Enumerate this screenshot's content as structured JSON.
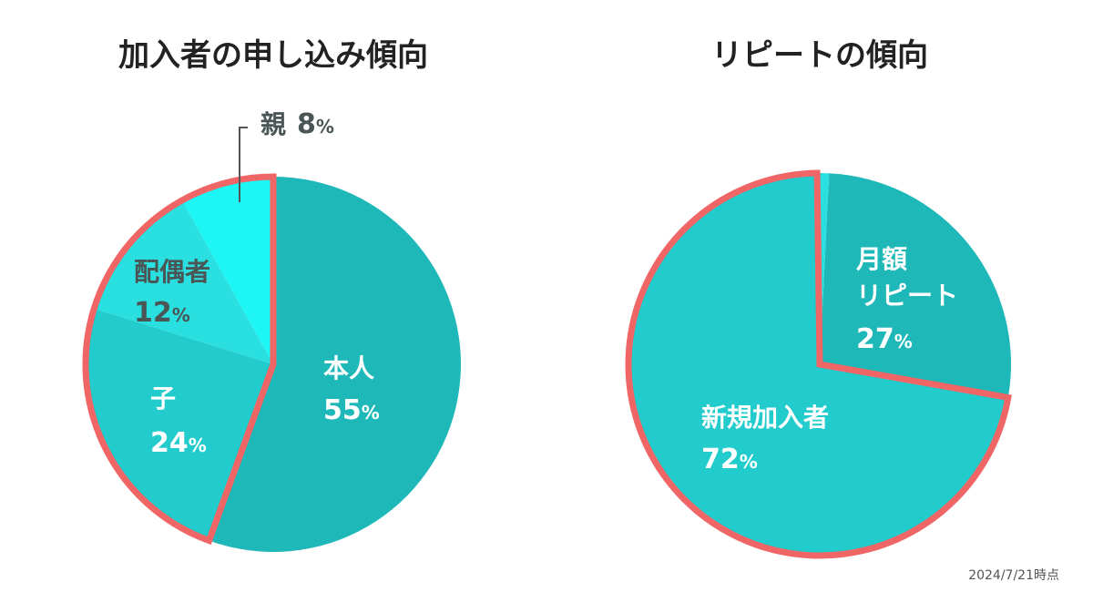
{
  "chart_data": [
    {
      "type": "pie",
      "title": "加入者の申し込み傾向",
      "slices": [
        {
          "label": "本人",
          "value": 55,
          "color": "#1fb8b8",
          "text_color": "#ffffff"
        },
        {
          "label": "子",
          "value": 24,
          "color": "#22cccc",
          "text_color": "#ffffff"
        },
        {
          "label": "配偶者",
          "value": 12,
          "color": "#2adfdf",
          "text_color": "#4a5555"
        },
        {
          "label": "親",
          "value": 8,
          "color": "#1ef5f5",
          "text_color": "#4a5555"
        }
      ],
      "highlight_color": "#f06565"
    },
    {
      "type": "pie",
      "title": "リピートの傾向",
      "slices": [
        {
          "label": "月額リピート",
          "value": 27,
          "color": "#1fb8b8",
          "text_color": "#ffffff"
        },
        {
          "label": "新規加入者",
          "value": 72,
          "color": "#22cccc",
          "text_color": "#ffffff"
        },
        {
          "label": "",
          "value": 1,
          "color": "#2adfdf",
          "text_color": "#ffffff"
        }
      ],
      "highlight_color": "#f06565"
    }
  ],
  "percent_sign": "%",
  "as_of": "2024/7/21時点"
}
